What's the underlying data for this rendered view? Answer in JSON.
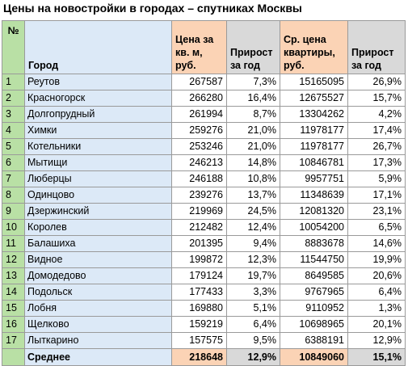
{
  "title": "Цены на новостройки в городах – спутниках Москвы",
  "headers": {
    "num": "№",
    "city": "Город",
    "price_sqm": "Цена за кв. м, руб.",
    "growth1": "Прирост за год",
    "avg_price": "Ср. цена квартиры, руб.",
    "growth2": "Прирост за год"
  },
  "rows": [
    {
      "n": "1",
      "city": "Реутов",
      "price": "267587",
      "g1": "7,3%",
      "avg": "15165095",
      "g2": "26,9%"
    },
    {
      "n": "2",
      "city": "Красногорск",
      "price": "266280",
      "g1": "16,4%",
      "avg": "12675527",
      "g2": "15,7%"
    },
    {
      "n": "3",
      "city": "Долгопрудный",
      "price": "261994",
      "g1": "8,7%",
      "avg": "13304262",
      "g2": "4,2%"
    },
    {
      "n": "4",
      "city": "Химки",
      "price": "259276",
      "g1": "21,0%",
      "avg": "11978177",
      "g2": "17,4%"
    },
    {
      "n": "5",
      "city": "Котельники",
      "price": "253246",
      "g1": "21,0%",
      "avg": "11978177",
      "g2": "26,7%"
    },
    {
      "n": "6",
      "city": "Мытищи",
      "price": "246213",
      "g1": "14,8%",
      "avg": "10846781",
      "g2": "17,3%"
    },
    {
      "n": "7",
      "city": "Люберцы",
      "price": "246188",
      "g1": "10,8%",
      "avg": "9957751",
      "g2": "5,9%"
    },
    {
      "n": "8",
      "city": "Одинцово",
      "price": "239276",
      "g1": "13,7%",
      "avg": "11348639",
      "g2": "17,1%"
    },
    {
      "n": "9",
      "city": "Дзержинский",
      "price": "219969",
      "g1": "24,5%",
      "avg": "12081320",
      "g2": "23,1%"
    },
    {
      "n": "10",
      "city": "Королев",
      "price": "212482",
      "g1": "12,4%",
      "avg": "10054200",
      "g2": "6,5%"
    },
    {
      "n": "11",
      "city": "Балашиха",
      "price": "201395",
      "g1": "9,4%",
      "avg": "8883678",
      "g2": "14,6%"
    },
    {
      "n": "12",
      "city": "Видное",
      "price": "199872",
      "g1": "12,3%",
      "avg": "11544750",
      "g2": "19,9%"
    },
    {
      "n": "13",
      "city": "Домодедово",
      "price": "179124",
      "g1": "19,7%",
      "avg": "8649585",
      "g2": "20,6%"
    },
    {
      "n": "14",
      "city": "Подольск",
      "price": "177433",
      "g1": "3,3%",
      "avg": "9767965",
      "g2": "6,4%"
    },
    {
      "n": "15",
      "city": "Лобня",
      "price": "169880",
      "g1": "5,1%",
      "avg": "9110952",
      "g2": "1,3%"
    },
    {
      "n": "16",
      "city": "Щелково",
      "price": "159219",
      "g1": "6,4%",
      "avg": "10698965",
      "g2": "20,1%"
    },
    {
      "n": "17",
      "city": "Лыткарино",
      "price": "157575",
      "g1": "9,5%",
      "avg": "6388191",
      "g2": "12,9%"
    }
  ],
  "footer": {
    "label": "Среднее",
    "price": "218648",
    "g1": "12,9%",
    "avg": "10849060",
    "g2": "15,1%"
  },
  "colors": {
    "green": "#b9e0a5",
    "blue": "#dce9f7",
    "orange": "#fbd3b5",
    "gray": "#d9d9d9"
  }
}
